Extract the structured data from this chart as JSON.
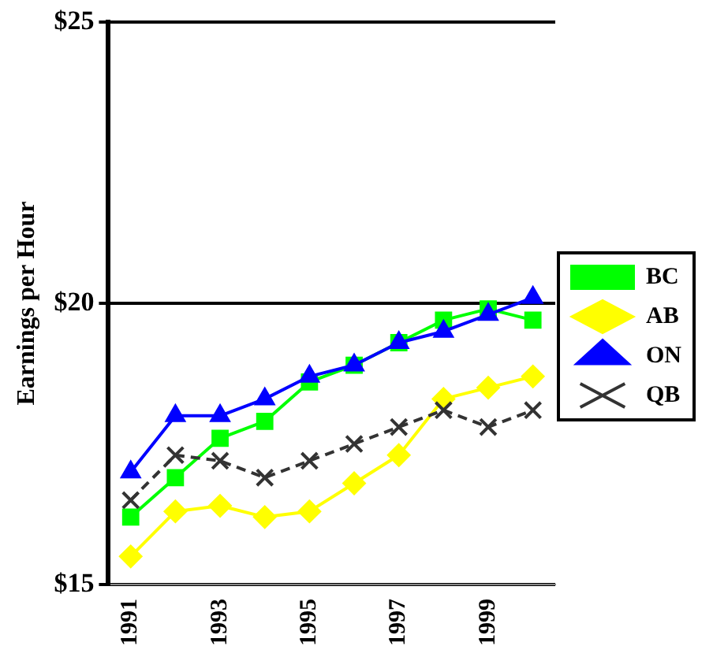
{
  "chart_data": {
    "type": "line",
    "ylabel": "Earnings per Hour",
    "categories": [
      "1991",
      null,
      "1993",
      null,
      "1995",
      null,
      "1997",
      null,
      "1999",
      null
    ],
    "ylim": [
      15,
      25
    ],
    "yticks": [
      {
        "value": 15,
        "label": "$15"
      },
      {
        "value": 20,
        "label": "$20"
      },
      {
        "value": 25,
        "label": "$25"
      }
    ],
    "grid": "y",
    "legend": "right",
    "series": [
      {
        "name": "BC",
        "color": "#00ff00",
        "marker": "square",
        "values": [
          16.2,
          16.9,
          17.6,
          17.9,
          18.6,
          18.9,
          19.3,
          19.7,
          19.9,
          19.7
        ]
      },
      {
        "name": "AB",
        "color": "#ffff00",
        "marker": "diamond",
        "values": [
          15.5,
          16.3,
          16.4,
          16.2,
          16.3,
          16.8,
          17.3,
          18.3,
          18.5,
          18.7
        ]
      },
      {
        "name": "ON",
        "color": "#0000ff",
        "marker": "triangle",
        "values": [
          17.0,
          18.0,
          18.0,
          18.3,
          18.7,
          18.9,
          19.3,
          19.5,
          19.8,
          20.1
        ]
      },
      {
        "name": "QB",
        "color": "#333333",
        "marker": "cross",
        "line_style": "dashed",
        "values": [
          16.5,
          17.3,
          17.2,
          16.9,
          17.2,
          17.5,
          17.8,
          18.1,
          17.8,
          18.1
        ]
      }
    ]
  }
}
